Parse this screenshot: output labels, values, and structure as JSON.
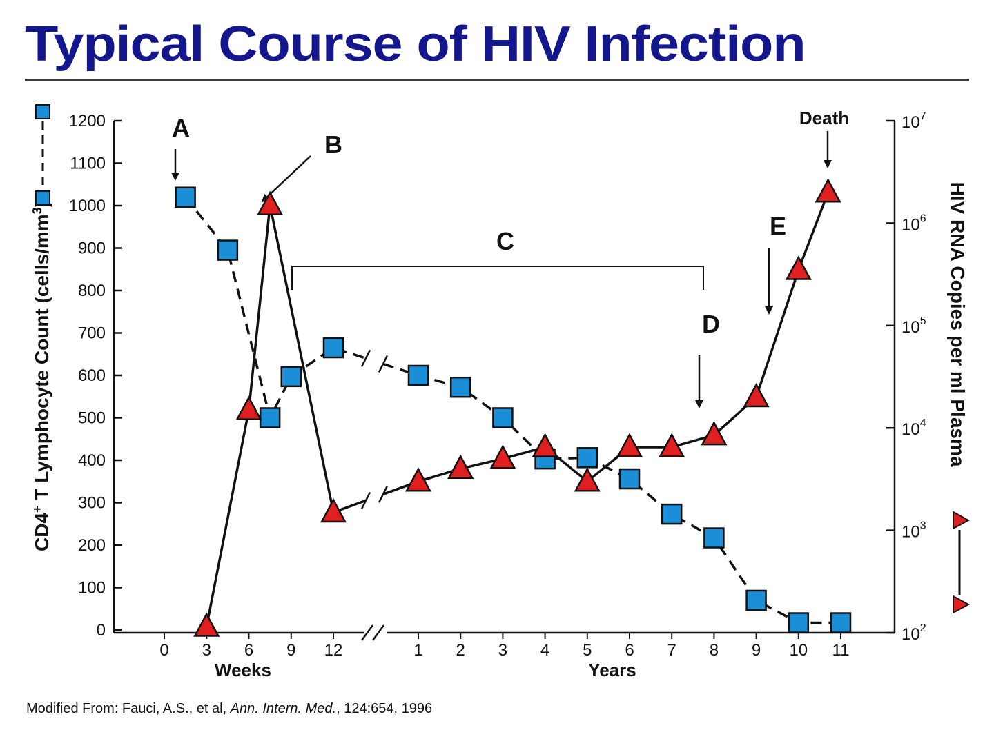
{
  "page": {
    "title": "Typical Course of HIV Infection",
    "title_color": "#14168c",
    "credit_prefix": "Modified From:  Fauci, A.S., et al, ",
    "credit_journal": "Ann. Intern. Med.",
    "credit_suffix": ", 124:654, 1996"
  },
  "chart_data": {
    "type": "line",
    "title": "Typical Course of HIV Infection",
    "y_left_label": "CD4+ T Lymphocyte Count (cells/mm3)",
    "y_right_label": "HIV RNA Copies per ml Plasma",
    "y_left_range": [
      0,
      1200
    ],
    "y_left_ticks": [
      0,
      100,
      200,
      300,
      400,
      500,
      600,
      700,
      800,
      900,
      1000,
      1100,
      1200
    ],
    "y_right_scale": "log",
    "y_right_range": [
      100,
      10000000
    ],
    "y_right_ticks": [
      {
        "base": "10",
        "exp": "2",
        "value": 100
      },
      {
        "base": "10",
        "exp": "3",
        "value": 1000
      },
      {
        "base": "10",
        "exp": "4",
        "value": 10000
      },
      {
        "base": "10",
        "exp": "5",
        "value": 100000
      },
      {
        "base": "10",
        "exp": "6",
        "value": 1000000
      },
      {
        "base": "10",
        "exp": "7",
        "value": 10000000
      }
    ],
    "x_axis": {
      "segments": [
        {
          "unit": "Weeks",
          "label": "Weeks",
          "ticks": [
            "0",
            "3",
            "6",
            "9",
            "12"
          ]
        },
        {
          "unit": "Years",
          "label": "Years",
          "ticks": [
            "1",
            "2",
            "3",
            "4",
            "5",
            "6",
            "7",
            "8",
            "9",
            "10",
            "11"
          ]
        }
      ],
      "break_between_segments": true
    },
    "series": [
      {
        "id": "cd4",
        "axis": "left",
        "marker": "square",
        "line": "dashed",
        "color": "#1a8fd8",
        "points": [
          {
            "unit": "Weeks",
            "x": 1.5,
            "y": 1020
          },
          {
            "unit": "Weeks",
            "x": 4.5,
            "y": 895
          },
          {
            "unit": "Weeks",
            "x": 7.5,
            "y": 500
          },
          {
            "unit": "Weeks",
            "x": 9,
            "y": 597
          },
          {
            "unit": "Weeks",
            "x": 12,
            "y": 665
          },
          {
            "unit": "Years",
            "x": 1,
            "y": 600
          },
          {
            "unit": "Years",
            "x": 2,
            "y": 572
          },
          {
            "unit": "Years",
            "x": 3,
            "y": 500
          },
          {
            "unit": "Years",
            "x": 4,
            "y": 403
          },
          {
            "unit": "Years",
            "x": 5,
            "y": 406
          },
          {
            "unit": "Years",
            "x": 6,
            "y": 356
          },
          {
            "unit": "Years",
            "x": 7,
            "y": 273
          },
          {
            "unit": "Years",
            "x": 8,
            "y": 217
          },
          {
            "unit": "Years",
            "x": 9,
            "y": 70
          },
          {
            "unit": "Years",
            "x": 10,
            "y": 17
          },
          {
            "unit": "Years",
            "x": 11,
            "y": 17
          }
        ]
      },
      {
        "id": "hiv_rna",
        "axis": "right",
        "marker": "triangle",
        "line": "solid",
        "color": "#e02020",
        "points": [
          {
            "unit": "Weeks",
            "x": 3,
            "y": 115
          },
          {
            "unit": "Weeks",
            "x": 6,
            "y": 15000
          },
          {
            "unit": "Weeks",
            "x": 7.5,
            "y": 1500000
          },
          {
            "unit": "Weeks",
            "x": 12,
            "y": 1500
          },
          {
            "unit": "Years",
            "x": 1,
            "y": 3000
          },
          {
            "unit": "Years",
            "x": 2,
            "y": 4000
          },
          {
            "unit": "Years",
            "x": 3,
            "y": 5000
          },
          {
            "unit": "Years",
            "x": 4,
            "y": 6500
          },
          {
            "unit": "Years",
            "x": 5,
            "y": 3000
          },
          {
            "unit": "Years",
            "x": 6,
            "y": 6500
          },
          {
            "unit": "Years",
            "x": 7,
            "y": 6500
          },
          {
            "unit": "Years",
            "x": 8,
            "y": 8500
          },
          {
            "unit": "Years",
            "x": 9,
            "y": 20000
          },
          {
            "unit": "Years",
            "x": 10,
            "y": 350000
          },
          {
            "unit": "Years",
            "x": 10.7,
            "y": 2000000
          }
        ]
      }
    ],
    "annotations": [
      {
        "label": "A"
      },
      {
        "label": "B"
      },
      {
        "label": "C"
      },
      {
        "label": "D"
      },
      {
        "label": "E"
      },
      {
        "label": "Death"
      }
    ]
  }
}
